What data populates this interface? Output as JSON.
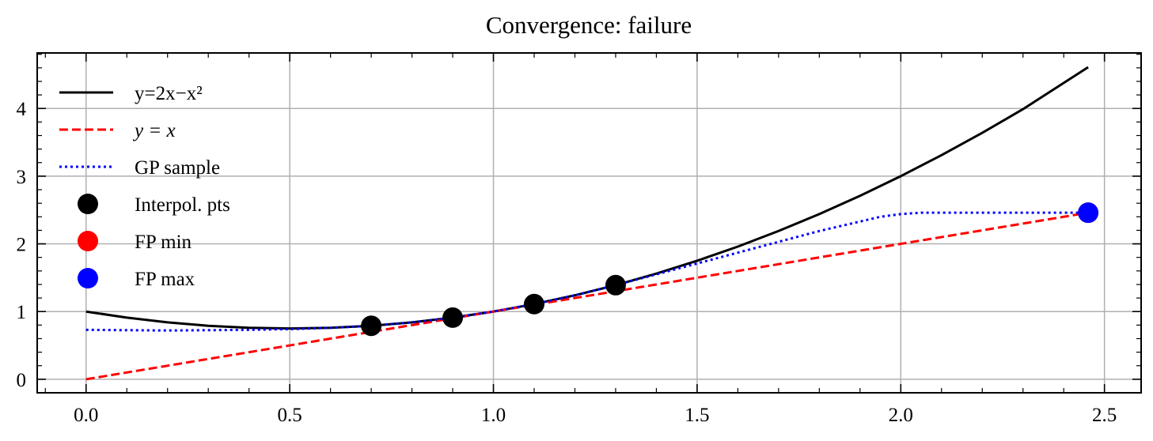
{
  "chart_data": {
    "type": "line",
    "title": "Convergence: failure",
    "xlabel": "",
    "ylabel": "",
    "xlim": [
      -0.12,
      2.59
    ],
    "ylim": [
      -0.2,
      4.82
    ],
    "xticks": [
      0.0,
      0.5,
      1.0,
      1.5,
      2.0,
      2.5
    ],
    "xtick_labels": [
      "0.0",
      "0.5",
      "1.0",
      "1.5",
      "2.0",
      "2.5"
    ],
    "yticks": [
      0,
      1,
      2,
      3,
      4
    ],
    "ytick_labels": [
      "0",
      "1",
      "2",
      "3",
      "4"
    ],
    "grid": true,
    "legend_position": "upper-left",
    "series": [
      {
        "name": "y=2x−x²",
        "kind": "line",
        "style": "solid",
        "color": "#000000",
        "x": [
          0.0,
          0.1,
          0.2,
          0.3,
          0.4,
          0.5,
          0.6,
          0.7,
          0.8,
          0.9,
          1.0,
          1.1,
          1.2,
          1.3,
          1.4,
          1.5,
          1.6,
          1.7,
          1.8,
          1.9,
          2.0,
          2.1,
          2.2,
          2.3,
          2.46
        ],
        "y": [
          1.0,
          0.91,
          0.84,
          0.79,
          0.76,
          0.75,
          0.76,
          0.79,
          0.84,
          0.91,
          1.0,
          1.11,
          1.24,
          1.39,
          1.56,
          1.75,
          1.96,
          2.19,
          2.44,
          2.71,
          3.0,
          3.31,
          3.64,
          3.99,
          4.61
        ]
      },
      {
        "name": "y = x",
        "kind": "line",
        "style": "dashed",
        "color": "#ff0000",
        "x": [
          0.0,
          2.46
        ],
        "y": [
          0.0,
          2.46
        ]
      },
      {
        "name": "GP sample",
        "kind": "line",
        "style": "dotted",
        "color": "#0000ff",
        "x": [
          0.0,
          0.2,
          0.4,
          0.5,
          0.6,
          0.7,
          0.8,
          0.9,
          1.0,
          1.1,
          1.2,
          1.3,
          1.4,
          1.5,
          1.6,
          1.7,
          1.8,
          1.9,
          1.95,
          2.0,
          2.05,
          2.2,
          2.46
        ],
        "y": [
          0.73,
          0.72,
          0.73,
          0.74,
          0.76,
          0.79,
          0.84,
          0.91,
          1.0,
          1.11,
          1.24,
          1.39,
          1.55,
          1.71,
          1.87,
          2.03,
          2.19,
          2.33,
          2.4,
          2.44,
          2.46,
          2.46,
          2.46
        ]
      },
      {
        "name": "Interpol. pts",
        "kind": "scatter",
        "color": "#000000",
        "x": [
          0.7,
          0.9,
          1.1,
          1.3
        ],
        "y": [
          0.79,
          0.91,
          1.11,
          1.39
        ]
      },
      {
        "name": "FP min",
        "kind": "scatter",
        "color": "#ff0000",
        "x": [
          2.46
        ],
        "y": [
          2.46
        ]
      },
      {
        "name": "FP max",
        "kind": "scatter",
        "color": "#0000ff",
        "x": [
          2.46
        ],
        "y": [
          2.46
        ]
      }
    ]
  }
}
